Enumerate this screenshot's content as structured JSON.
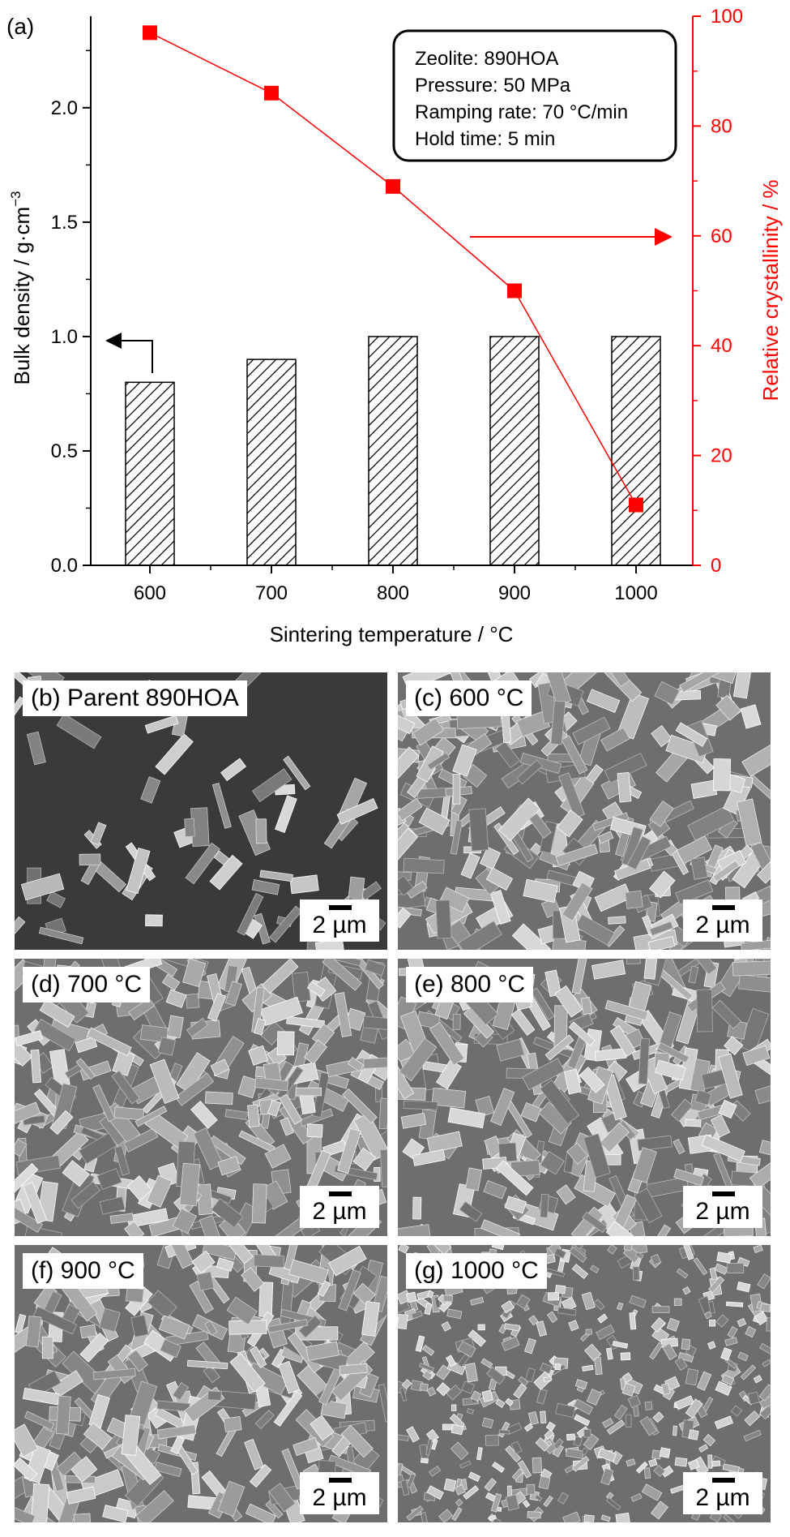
{
  "chart_data": {
    "type": "bar",
    "panel_label": "(a)",
    "xlabel": "Sintering temperature / °C",
    "categories": [
      "600",
      "700",
      "800",
      "900",
      "1000"
    ],
    "ylabel_left": "Bulk density / g·cm",
    "ylabel_left_superscript": "−3",
    "ylabel_right": "Relative crystallinity / %",
    "ylim_left": [
      0,
      2.4
    ],
    "ylim_right": [
      0,
      100
    ],
    "yticks_left": [
      "0.0",
      "0.5",
      "1.0",
      "1.5",
      "2.0"
    ],
    "yticks_right": [
      "0",
      "20",
      "40",
      "60",
      "80",
      "100"
    ],
    "series": [
      {
        "name": "Bulk density",
        "kind": "bar",
        "axis": "left",
        "pattern": "hatched",
        "values": [
          0.8,
          0.9,
          1.0,
          1.0,
          1.0
        ]
      },
      {
        "name": "Relative crystallinity",
        "kind": "line-square",
        "axis": "right",
        "color": "#ff0000",
        "values": [
          97,
          86,
          69,
          50,
          11
        ]
      }
    ],
    "annotation_box": [
      "Zeolite: 890HOA",
      "Pressure: 50 MPa",
      "Ramping rate: 70 °C/min",
      "Hold time: 5 min"
    ],
    "legend": "top-right",
    "grid": false
  },
  "sem_panels": [
    {
      "label": "(b) Parent 890HOA",
      "scale": "2 µm"
    },
    {
      "label": "(c) 600 °C",
      "scale": "2 µm"
    },
    {
      "label": "(d) 700 °C",
      "scale": "2 µm"
    },
    {
      "label": "(e) 800 °C",
      "scale": "2 µm"
    },
    {
      "label": "(f) 900 °C",
      "scale": "2 µm"
    },
    {
      "label": "(g) 1000 °C",
      "scale": "2 µm"
    }
  ],
  "colors": {
    "axis": "#000000",
    "secondary": "#ff0000",
    "sem_gray": "#6e6e6e",
    "sem_dark": "#3a3a3a"
  },
  "icons": [
    "left-arrow-icon",
    "right-arrow-icon",
    "scale-bar-icon"
  ]
}
